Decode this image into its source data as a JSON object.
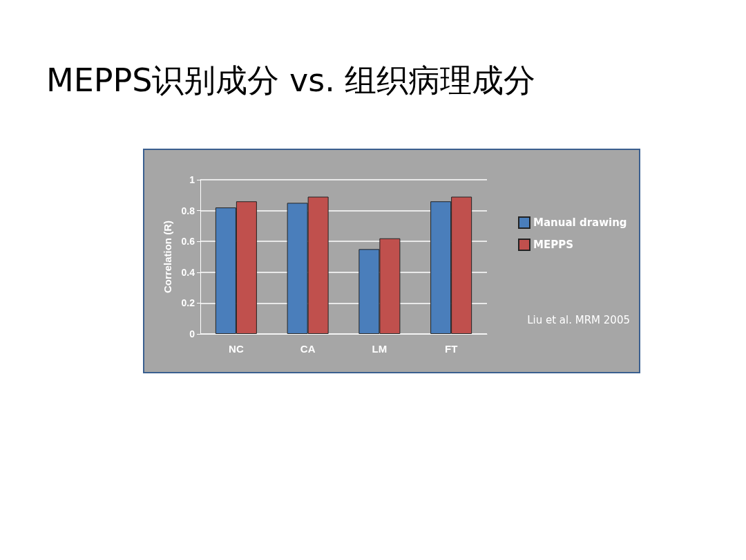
{
  "chart_data": {
    "type": "bar",
    "title": "MEPPS识别成分 vs. 组织病理成分",
    "ylabel": "Correlation (R)",
    "categories": [
      "NC",
      "CA",
      "LM",
      "FT"
    ],
    "series": [
      {
        "name": "Manual drawing",
        "color": "#4a7ebb",
        "values": [
          0.82,
          0.85,
          0.55,
          0.86
        ]
      },
      {
        "name": "MEPPS",
        "color": "#c0504d",
        "values": [
          0.86,
          0.89,
          0.62,
          0.89
        ]
      }
    ],
    "ylim": [
      0,
      1
    ],
    "yticks": [
      0,
      0.2,
      0.4,
      0.6,
      0.8,
      1
    ],
    "grid": "y",
    "legend": "right",
    "annotations": [
      "Liu et al. MRM 2005"
    ]
  }
}
